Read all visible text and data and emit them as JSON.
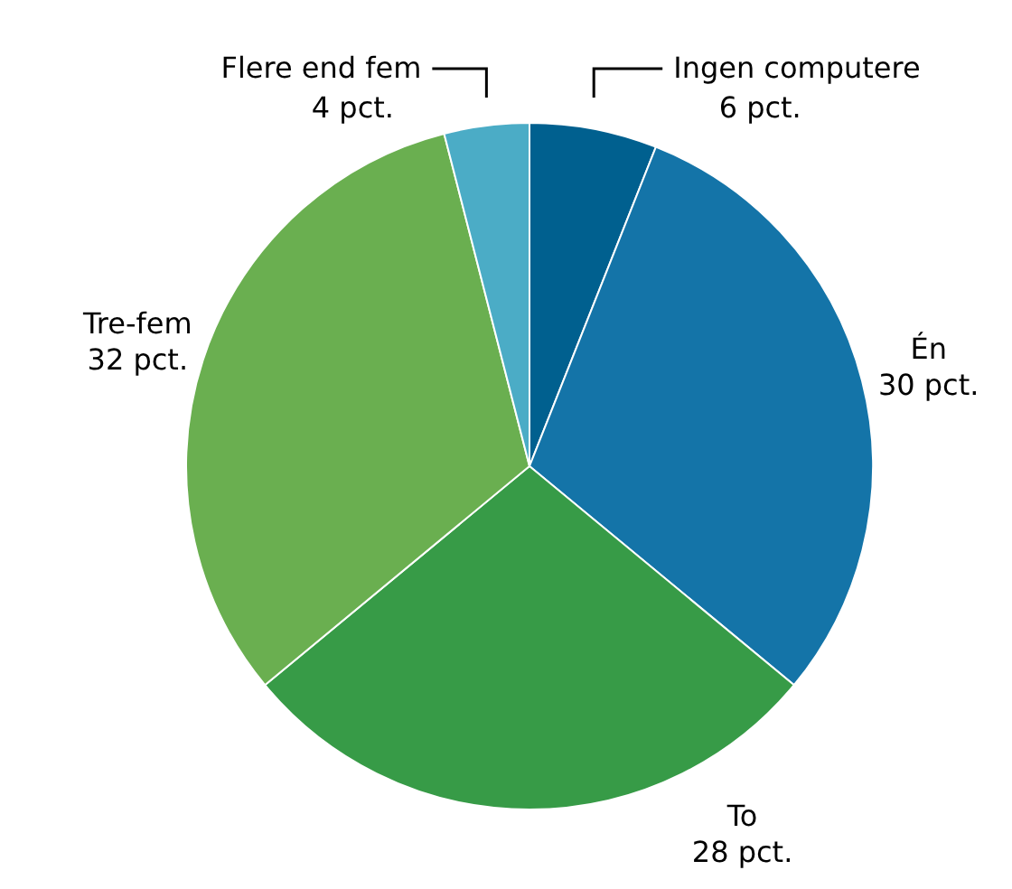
{
  "chart_data": {
    "type": "pie",
    "categories": [
      "Ingen computere",
      "Én",
      "To",
      "Tre-fem",
      "Flere end fem"
    ],
    "values": [
      6,
      30,
      28,
      32,
      4
    ],
    "colors": [
      "#00608f",
      "#1474a8",
      "#379b47",
      "#6aaf50",
      "#4bacc6"
    ],
    "value_labels": [
      "6 pct.",
      "30 pct.",
      "28 pct.",
      "32 pct.",
      "4 pct."
    ]
  }
}
